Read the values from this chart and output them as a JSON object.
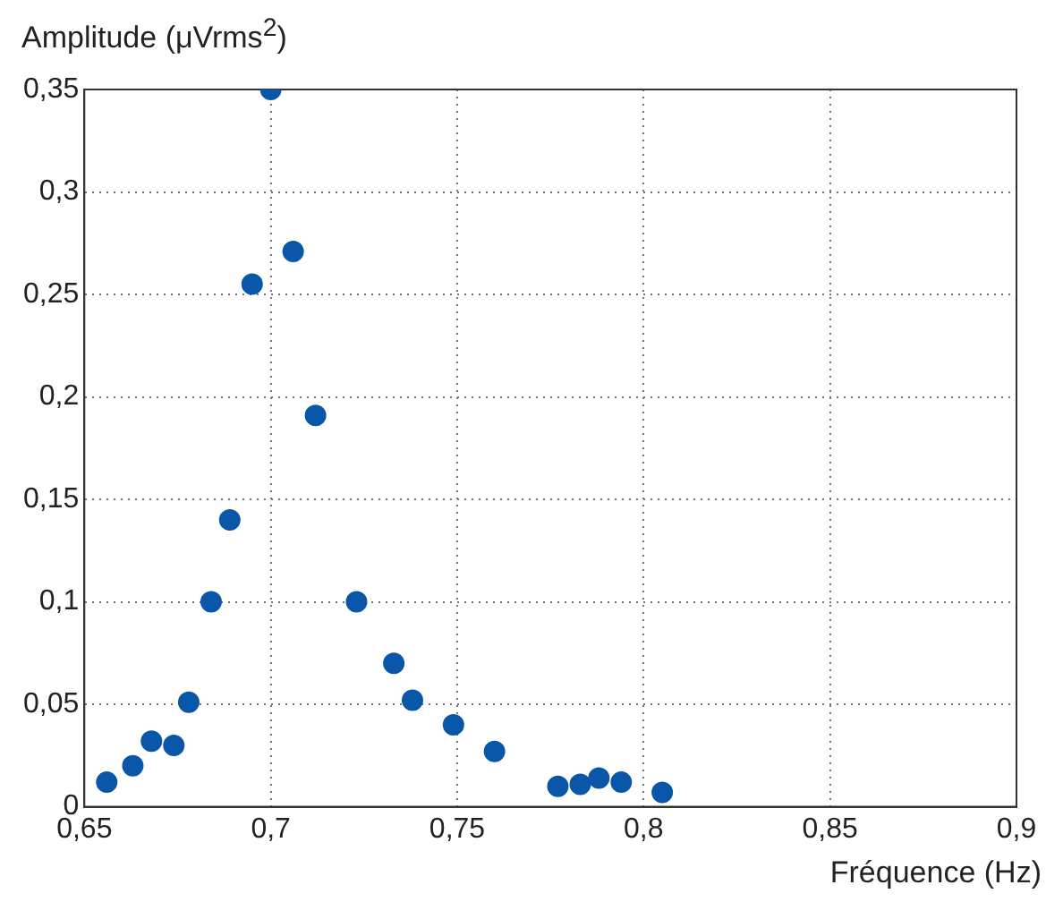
{
  "chart_data": {
    "type": "scatter",
    "xlabel": "Fréquence (Hz)",
    "ylabel": "Amplitude (μVrms$^{2}$)",
    "x": [
      0.656,
      0.663,
      0.668,
      0.674,
      0.678,
      0.684,
      0.689,
      0.695,
      0.7,
      0.706,
      0.712,
      0.723,
      0.733,
      0.738,
      0.749,
      0.76,
      0.777,
      0.783,
      0.788,
      0.794,
      0.805
    ],
    "values": [
      0.012,
      0.02,
      0.032,
      0.03,
      0.051,
      0.1,
      0.14,
      0.255,
      0.35,
      0.271,
      0.191,
      0.1,
      0.07,
      0.052,
      0.04,
      0.027,
      0.01,
      0.011,
      0.014,
      0.012,
      0.007
    ],
    "color": "#0a56a8",
    "marker": "circle",
    "grid": true,
    "xlim": [
      0.65,
      0.9
    ],
    "xticks": [
      {
        "value": 0.65,
        "label": "0,65"
      },
      {
        "value": 0.7,
        "label": "0,7"
      },
      {
        "value": 0.75,
        "label": "0,75"
      },
      {
        "value": 0.8,
        "label": "0,8"
      },
      {
        "value": 0.85,
        "label": "0,85"
      },
      {
        "value": 0.9,
        "label": "0,9"
      }
    ],
    "ylim": [
      0,
      0.35
    ],
    "yticks": [
      0,
      {
        "value": 0.05,
        "label": "0,05"
      },
      {
        "value": 0.1,
        "label": "0,1"
      },
      {
        "value": 0.15,
        "label": "0,15"
      },
      {
        "value": 0.2,
        "label": "0,2"
      },
      {
        "value": 0.25,
        "label": "0,25"
      },
      {
        "value": 0.3,
        "label": "0,3"
      },
      {
        "value": 0.35,
        "label": "0,35"
      }
    ]
  }
}
